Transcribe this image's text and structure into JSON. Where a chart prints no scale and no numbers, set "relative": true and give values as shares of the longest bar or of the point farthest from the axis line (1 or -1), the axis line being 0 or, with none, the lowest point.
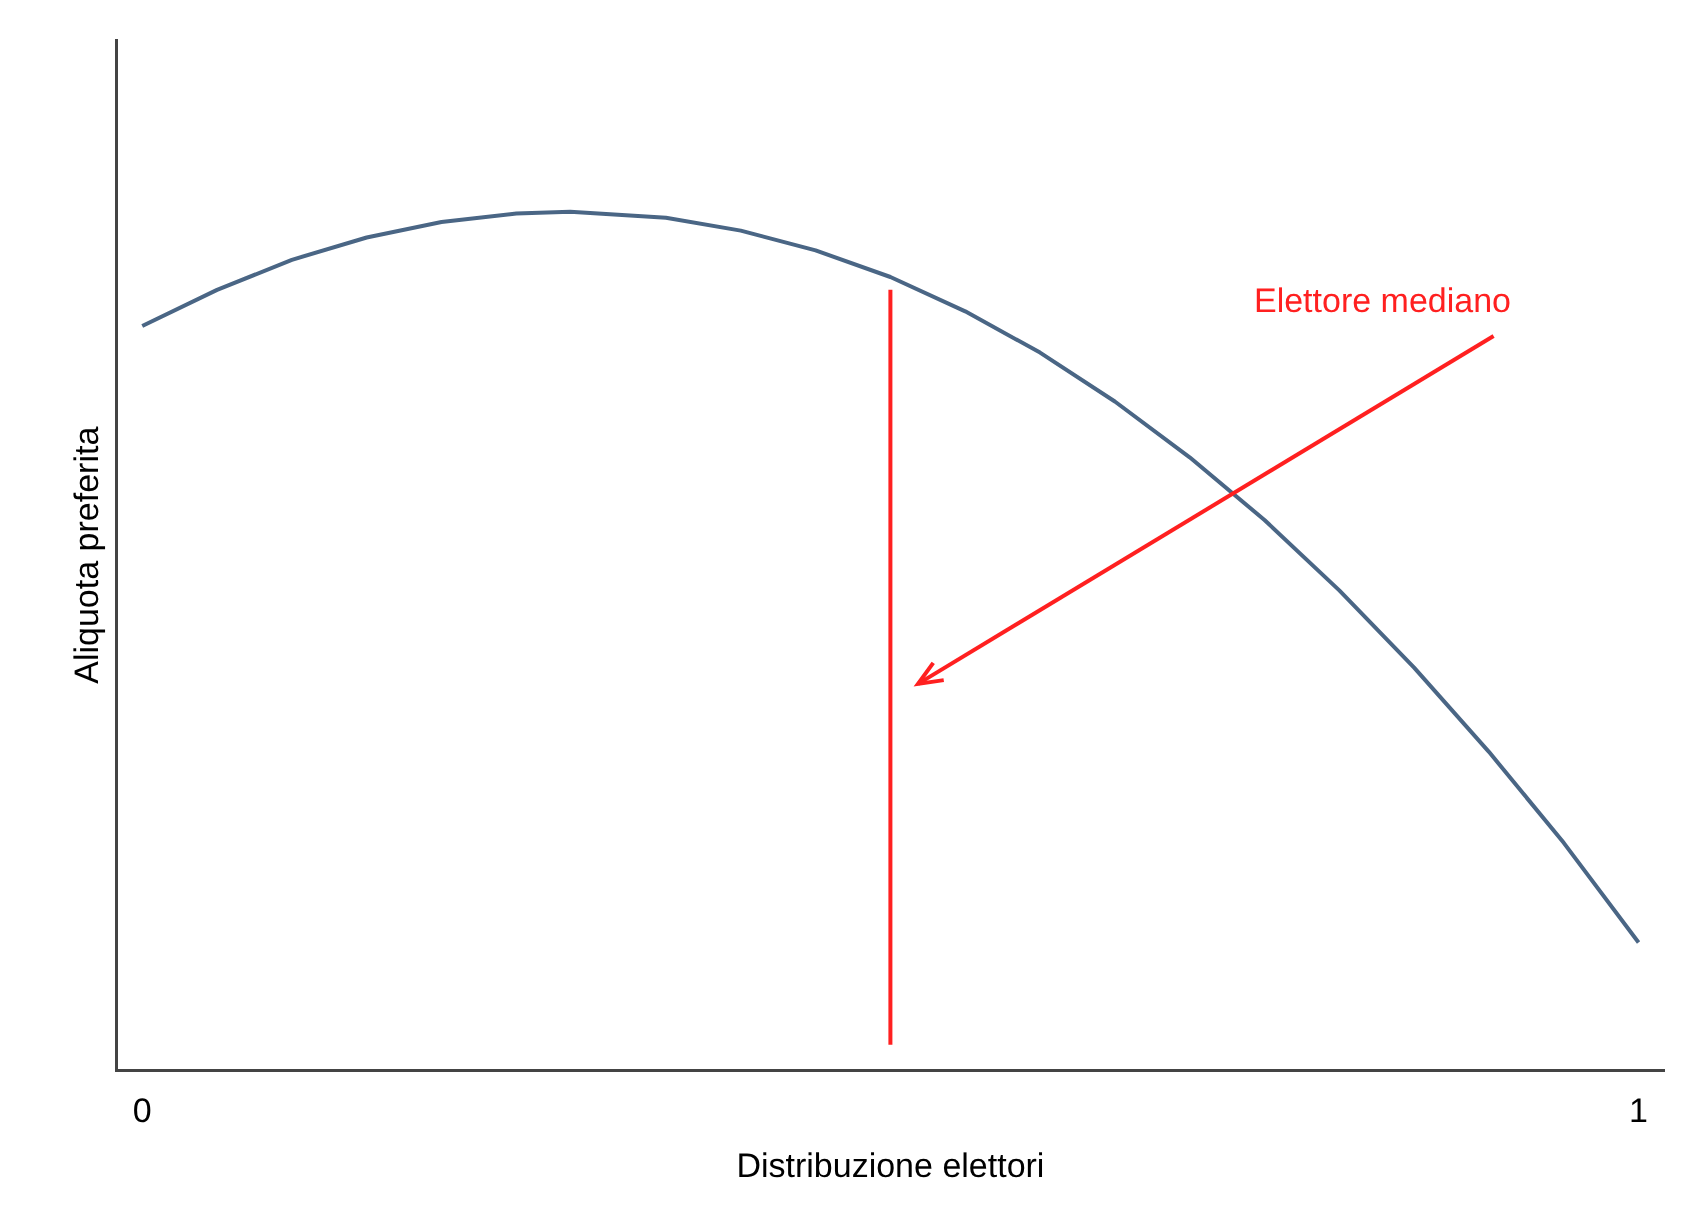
{
  "chart_data": {
    "type": "line",
    "xlabel": "Distribuzione elettori",
    "ylabel": "Aliquota preferita",
    "relative": true,
    "xlim": [
      -0.017,
      1.017
    ],
    "xticks": [
      0,
      1
    ],
    "grid": false,
    "legend": false,
    "marker": "none",
    "line_style": "solid",
    "annotations": [
      "Elettore mediano"
    ],
    "series": [
      {
        "color": "#4a6685",
        "x": [
          0,
          0.05,
          0.1,
          0.15,
          0.2,
          0.25,
          0.286,
          0.35,
          0.4,
          0.45,
          0.5,
          0.55,
          0.6,
          0.65,
          0.7,
          0.75,
          0.8,
          0.85,
          0.9,
          0.95,
          1
        ],
        "values": [
          0.867,
          0.909,
          0.944,
          0.97,
          0.988,
          0.998,
          1,
          0.993,
          0.978,
          0.955,
          0.924,
          0.884,
          0.836,
          0.779,
          0.714,
          0.641,
          0.559,
          0.469,
          0.371,
          0.265,
          0.149
        ]
      },
      {
        "color": "#ff2020",
        "x": [
          0.5,
          0.5
        ],
        "values": [
          0.03,
          0.909
        ]
      }
    ]
  }
}
